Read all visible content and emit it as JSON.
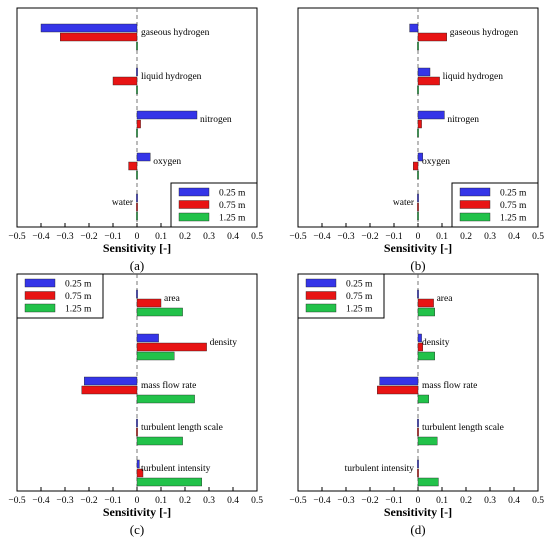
{
  "chart_data": [
    {
      "type": "bar",
      "orientation": "horizontal",
      "panel_label": "(a)",
      "xlabel": "Sensitivity [-]",
      "xlim": [
        -0.5,
        0.5
      ],
      "xticks": [
        "−0.5",
        "−0.4",
        "−0.3",
        "−0.2",
        "−0.1",
        "0",
        "0.1",
        "0.2",
        "0.3",
        "0.4",
        "0.5"
      ],
      "categories": [
        "gaseous hydrogen",
        "liquid hydrogen",
        "nitrogen",
        "oxygen",
        "water"
      ],
      "series": [
        {
          "name": "0.25 m",
          "values": [
            -0.4,
            -0.005,
            0.25,
            0.055,
            0.0
          ]
        },
        {
          "name": "0.75 m",
          "values": [
            -0.32,
            -0.1,
            0.015,
            -0.035,
            0.0
          ]
        },
        {
          "name": "1.25 m",
          "values": [
            0.0,
            0.0,
            0.0,
            0.0,
            0.0
          ]
        }
      ],
      "legend_position": "bottom-right",
      "colors": [
        "#3535e8",
        "#e81414",
        "#22c24a"
      ]
    },
    {
      "type": "bar",
      "orientation": "horizontal",
      "panel_label": "(b)",
      "xlabel": "Sensitivity [-]",
      "xlim": [
        -0.5,
        0.5
      ],
      "xticks": [
        "−0.5",
        "−0.4",
        "−0.3",
        "−0.2",
        "−0.1",
        "0",
        "0.1",
        "0.2",
        "0.3",
        "0.4",
        "0.5"
      ],
      "categories": [
        "gaseous hydrogen",
        "liquid hydrogen",
        "nitrogen",
        "oxygen",
        "water"
      ],
      "series": [
        {
          "name": "0.25 m",
          "values": [
            -0.035,
            0.05,
            0.11,
            0.02,
            0.0
          ]
        },
        {
          "name": "0.75 m",
          "values": [
            0.12,
            0.09,
            0.015,
            -0.02,
            0.0
          ]
        },
        {
          "name": "1.25 m",
          "values": [
            0.0,
            0.0,
            0.0,
            0.0,
            0.0
          ]
        }
      ],
      "legend_position": "bottom-right",
      "colors": [
        "#3535e8",
        "#e81414",
        "#22c24a"
      ]
    },
    {
      "type": "bar",
      "orientation": "horizontal",
      "panel_label": "(c)",
      "xlabel": "Sensitivity [-]",
      "xlim": [
        -0.5,
        0.5
      ],
      "xticks": [
        "−0.5",
        "−0.4",
        "−0.3",
        "−0.2",
        "−0.1",
        "0",
        "0.1",
        "0.2",
        "0.3",
        "0.4",
        "0.5"
      ],
      "categories": [
        "area",
        "density",
        "mass flow rate",
        "turbulent length scale",
        "turbulent intensity"
      ],
      "series": [
        {
          "name": "0.25 m",
          "values": [
            0.0,
            0.09,
            -0.22,
            0.0,
            0.01
          ]
        },
        {
          "name": "0.75 m",
          "values": [
            0.1,
            0.29,
            -0.23,
            0.0,
            0.025
          ]
        },
        {
          "name": "1.25 m",
          "values": [
            0.19,
            0.155,
            0.24,
            0.19,
            0.27
          ]
        }
      ],
      "legend_position": "top-left",
      "colors": [
        "#3535e8",
        "#e81414",
        "#22c24a"
      ]
    },
    {
      "type": "bar",
      "orientation": "horizontal",
      "panel_label": "(d)",
      "xlabel": "Sensitivity [-]",
      "xlim": [
        -0.5,
        0.5
      ],
      "xticks": [
        "−0.5",
        "−0.4",
        "−0.3",
        "−0.2",
        "−0.1",
        "0",
        "0.1",
        "0.2",
        "0.3",
        "0.4",
        "0.5"
      ],
      "categories": [
        "area",
        "density",
        "mass flow rate",
        "turbulent length scale",
        "turbulent intensity"
      ],
      "series": [
        {
          "name": "0.25 m",
          "values": [
            0.0,
            0.015,
            -0.16,
            0.0,
            0.005
          ]
        },
        {
          "name": "0.75 m",
          "values": [
            0.065,
            0.02,
            -0.17,
            0.0,
            0.0
          ]
        },
        {
          "name": "1.25 m",
          "values": [
            0.07,
            0.07,
            0.045,
            0.08,
            0.085
          ]
        }
      ],
      "legend_position": "top-left",
      "colors": [
        "#3535e8",
        "#e81414",
        "#22c24a"
      ]
    }
  ]
}
